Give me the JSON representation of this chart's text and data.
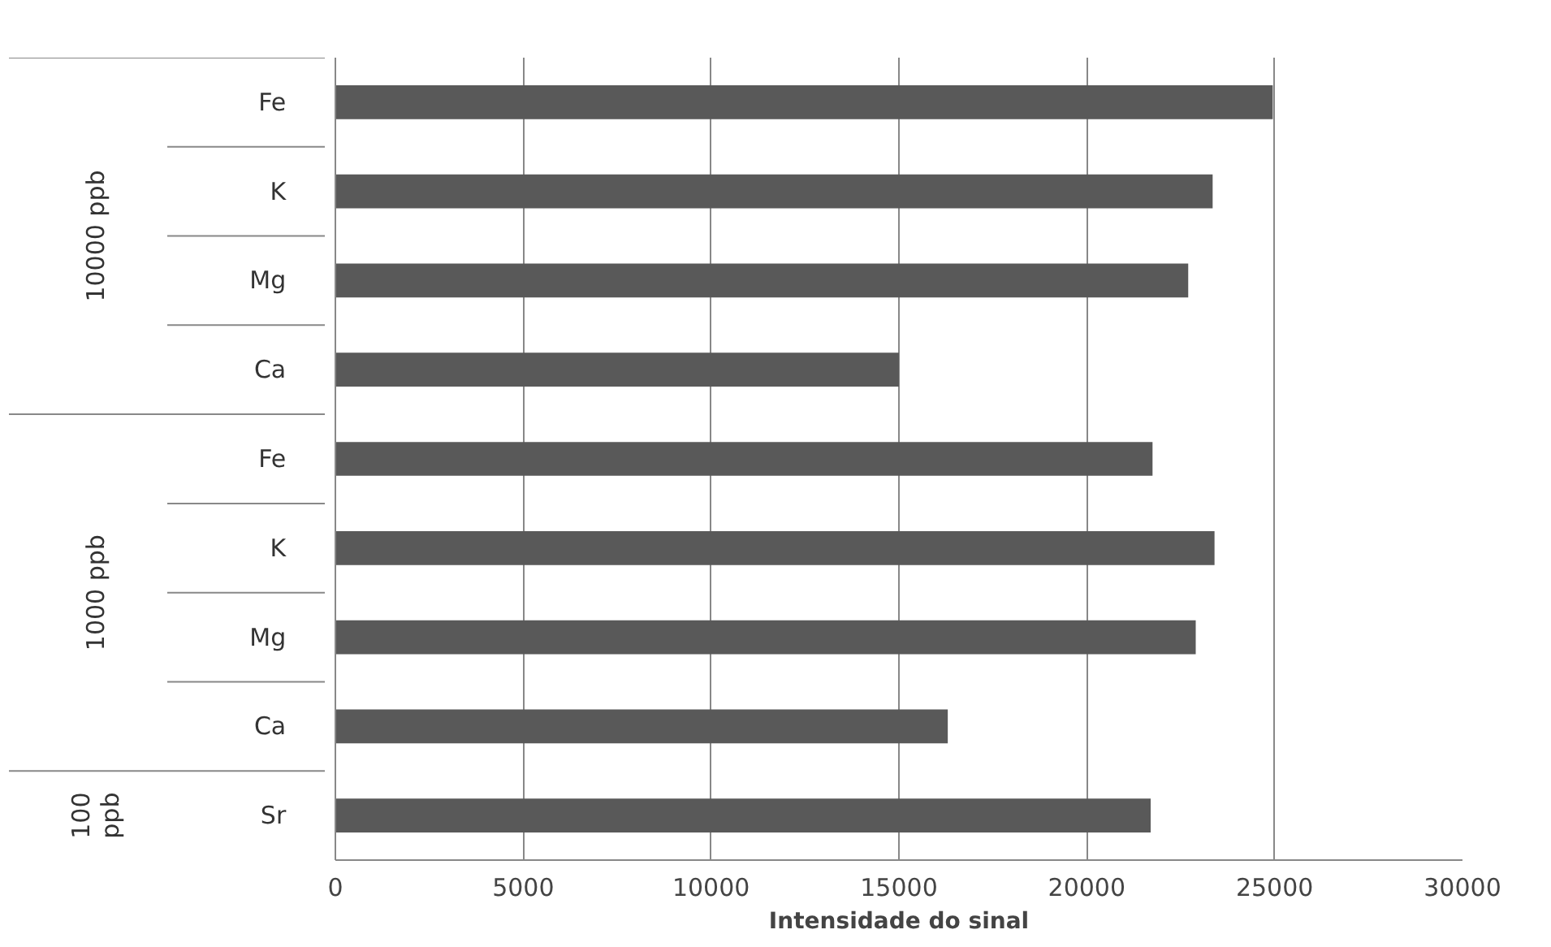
{
  "chart_data": {
    "type": "bar",
    "orientation": "horizontal",
    "xlabel": "Intensidade do sinal",
    "categories": [
      "Fe",
      "K",
      "Mg",
      "Ca",
      "Fe",
      "K",
      "Mg",
      "Ca",
      "Sr"
    ],
    "values": [
      24950,
      23350,
      22700,
      15000,
      21750,
      23400,
      22900,
      16300,
      21700
    ],
    "color": "#595959",
    "annotations": [
      "10000 ppb",
      "1000 ppb",
      "100 ppb"
    ],
    "xlim": [
      0,
      30000
    ],
    "xticks": [
      0,
      5000,
      10000,
      15000,
      20000,
      25000,
      30000
    ],
    "grid": "x"
  }
}
